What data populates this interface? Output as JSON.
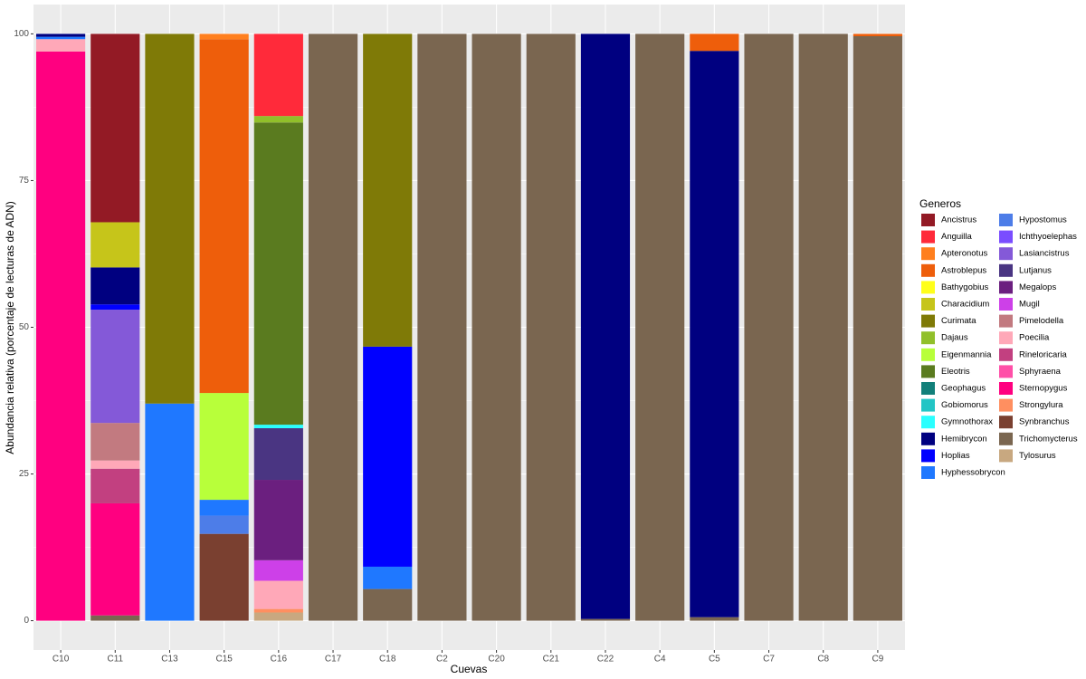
{
  "chart_data": {
    "type": "stacked_bar",
    "x_label": "Cuevas",
    "y_label": "Abundancia relativa (porcentaje de lecturas de ADN)",
    "legend_title": "Generos",
    "categories": [
      "C10",
      "C11",
      "C13",
      "C15",
      "C16",
      "C17",
      "C18",
      "C2",
      "C20",
      "C21",
      "C22",
      "C4",
      "C5",
      "C7",
      "C8",
      "C9"
    ],
    "ylim": [
      -5,
      105
    ],
    "yticks": [
      0,
      25,
      50,
      75,
      100
    ],
    "grid": true,
    "series": [
      {
        "name": "Ancistrus",
        "color": "#931a25",
        "values": [
          0,
          32.1,
          0,
          0,
          0,
          0,
          0,
          0,
          0,
          0,
          0,
          0,
          0,
          0,
          0,
          0
        ]
      },
      {
        "name": "Anguilla",
        "color": "#ff2a3a",
        "values": [
          0,
          0,
          0,
          0,
          14,
          0,
          0,
          0,
          0,
          0,
          0,
          0,
          0,
          0,
          0,
          0
        ]
      },
      {
        "name": "Apteronotus",
        "color": "#ff7f1e",
        "values": [
          0,
          0,
          0,
          0.9,
          0,
          0,
          0,
          0,
          0,
          0,
          0,
          0,
          0,
          0,
          0,
          0
        ]
      },
      {
        "name": "Astroblepus",
        "color": "#ee5e0b",
        "values": [
          0,
          0,
          0,
          60.3,
          0,
          0,
          0,
          0,
          0,
          0,
          0,
          0,
          2.9,
          0,
          0,
          0.4
        ]
      },
      {
        "name": "Bathygobius",
        "color": "#ffff1a",
        "values": [
          0,
          0,
          0,
          0,
          0,
          0,
          0,
          0,
          0,
          0,
          0,
          0,
          0,
          0,
          0,
          0
        ]
      },
      {
        "name": "Characidium",
        "color": "#c6c51a",
        "values": [
          0,
          7.7,
          0,
          0,
          0,
          0,
          0,
          0,
          0,
          0,
          0,
          0,
          0,
          0,
          0,
          0
        ]
      },
      {
        "name": "Curimata",
        "color": "#7f7a07",
        "values": [
          0,
          0,
          63,
          0,
          0,
          0,
          53.3,
          0,
          0,
          0,
          0,
          0,
          0,
          0,
          0,
          0
        ]
      },
      {
        "name": "Dajaus",
        "color": "#91c02a",
        "values": [
          0,
          0,
          0,
          0,
          1.1,
          0,
          0,
          0,
          0,
          0,
          0,
          0,
          0,
          0,
          0,
          0
        ]
      },
      {
        "name": "Eigenmannia",
        "color": "#b8ff3a",
        "values": [
          0,
          0,
          0,
          18.2,
          0,
          0,
          0,
          0,
          0,
          0,
          0,
          0,
          0,
          0,
          0,
          0
        ]
      },
      {
        "name": "Eleotris",
        "color": "#5a7b1f",
        "values": [
          0,
          0,
          0,
          0,
          51.5,
          0,
          0,
          0,
          0,
          0,
          0,
          0,
          0,
          0,
          0,
          0
        ]
      },
      {
        "name": "Geophagus",
        "color": "#12807a",
        "values": [
          0,
          0,
          0,
          0,
          0,
          0,
          0,
          0,
          0,
          0,
          0,
          0,
          0,
          0,
          0,
          0
        ]
      },
      {
        "name": "Gobiomorus",
        "color": "#23c5c5",
        "values": [
          0,
          0,
          0,
          0,
          0,
          0,
          0,
          0,
          0,
          0,
          0,
          0,
          0,
          0,
          0,
          0
        ]
      },
      {
        "name": "Gymnothorax",
        "color": "#2affff",
        "values": [
          0,
          0,
          0,
          0,
          0.6,
          0,
          0,
          0,
          0,
          0,
          0,
          0,
          0,
          0,
          0,
          0
        ]
      },
      {
        "name": "Hemibrycon",
        "color": "#000080",
        "values": [
          0.5,
          6.3,
          0,
          0,
          0,
          0,
          0,
          0,
          0,
          0,
          99.7,
          0,
          96.5,
          0,
          0,
          0
        ]
      },
      {
        "name": "Hoplias",
        "color": "#0000ff",
        "values": [
          0,
          0.9,
          0,
          0,
          0,
          0,
          37.5,
          0,
          0,
          0,
          0,
          0,
          0,
          0,
          0,
          0
        ]
      },
      {
        "name": "Hyphessobrycon",
        "color": "#1f78ff",
        "values": [
          0.4,
          0,
          37,
          2.7,
          0,
          0,
          3.8,
          0,
          0,
          0,
          0,
          0,
          0,
          0,
          0,
          0
        ]
      },
      {
        "name": "Hypostomus",
        "color": "#4d7de8",
        "values": [
          0,
          0,
          0,
          3.1,
          0,
          0,
          0,
          0,
          0,
          0,
          0,
          0,
          0,
          0,
          0,
          0
        ]
      },
      {
        "name": "Ichthyoelephas",
        "color": "#7a4dff",
        "values": [
          0,
          0,
          0,
          0,
          0,
          0,
          0,
          0,
          0,
          0,
          0,
          0,
          0,
          0,
          0,
          0
        ]
      },
      {
        "name": "Lasiancistrus",
        "color": "#8459d8",
        "values": [
          0,
          19.3,
          0,
          0,
          0,
          0,
          0,
          0,
          0,
          0,
          0,
          0,
          0,
          0,
          0,
          0
        ]
      },
      {
        "name": "Lutjanus",
        "color": "#4a3582",
        "values": [
          0,
          0,
          0,
          0,
          8.8,
          0,
          0,
          0,
          0,
          0,
          0,
          0,
          0,
          0,
          0,
          0
        ]
      },
      {
        "name": "Megalops",
        "color": "#6b1f7f",
        "values": [
          0,
          0,
          0,
          0,
          13.7,
          0,
          0,
          0,
          0,
          0,
          0,
          0,
          0,
          0,
          0,
          0
        ]
      },
      {
        "name": "Mugil",
        "color": "#cd40e8",
        "values": [
          0,
          0,
          0,
          0,
          3.5,
          0,
          0,
          0,
          0,
          0,
          0,
          0,
          0,
          0,
          0,
          0
        ]
      },
      {
        "name": "Pimelodella",
        "color": "#c27a80",
        "values": [
          0,
          6.4,
          0,
          0,
          0,
          0,
          0,
          0,
          0,
          0,
          0,
          0,
          0,
          0,
          0,
          0
        ]
      },
      {
        "name": "Poecilia",
        "color": "#ffa8b8",
        "values": [
          2.1,
          1.4,
          0,
          0,
          4.8,
          0,
          0,
          0,
          0,
          0,
          0,
          0,
          0,
          0,
          0,
          0
        ]
      },
      {
        "name": "Rineloricaria",
        "color": "#c24080",
        "values": [
          0,
          5.9,
          0,
          0,
          0,
          0,
          0,
          0,
          0,
          0,
          0,
          0,
          0,
          0,
          0,
          0
        ]
      },
      {
        "name": "Sphyraena",
        "color": "#ff4fa8",
        "values": [
          0,
          0,
          0,
          0,
          0,
          0,
          0,
          0,
          0,
          0,
          0,
          0,
          0,
          0,
          0,
          0
        ]
      },
      {
        "name": "Sternopygus",
        "color": "#ff0080",
        "values": [
          97,
          19.1,
          0,
          0,
          0,
          0,
          0,
          0,
          0,
          0,
          0,
          0,
          0,
          0,
          0,
          0
        ]
      },
      {
        "name": "Strongylura",
        "color": "#ff8f60",
        "values": [
          0,
          0,
          0,
          0,
          0.6,
          0,
          0,
          0,
          0,
          0,
          0,
          0,
          0,
          0,
          0,
          0
        ]
      },
      {
        "name": "Synbranchus",
        "color": "#7a4030",
        "values": [
          0,
          0,
          0,
          14.8,
          0,
          0,
          0,
          0,
          0,
          0,
          0,
          0,
          0,
          0,
          0,
          0
        ]
      },
      {
        "name": "Trichomycterus",
        "color": "#7a6650",
        "values": [
          0,
          0.9,
          0,
          0,
          0,
          100,
          5.4,
          100,
          100,
          100,
          0.3,
          100,
          0.6,
          100,
          100,
          99.6
        ]
      },
      {
        "name": "Tylosurus",
        "color": "#c8a880",
        "values": [
          0,
          0,
          0,
          0,
          1.4,
          0,
          0,
          0,
          0,
          0,
          0,
          0,
          0,
          0,
          0,
          0
        ]
      }
    ]
  }
}
